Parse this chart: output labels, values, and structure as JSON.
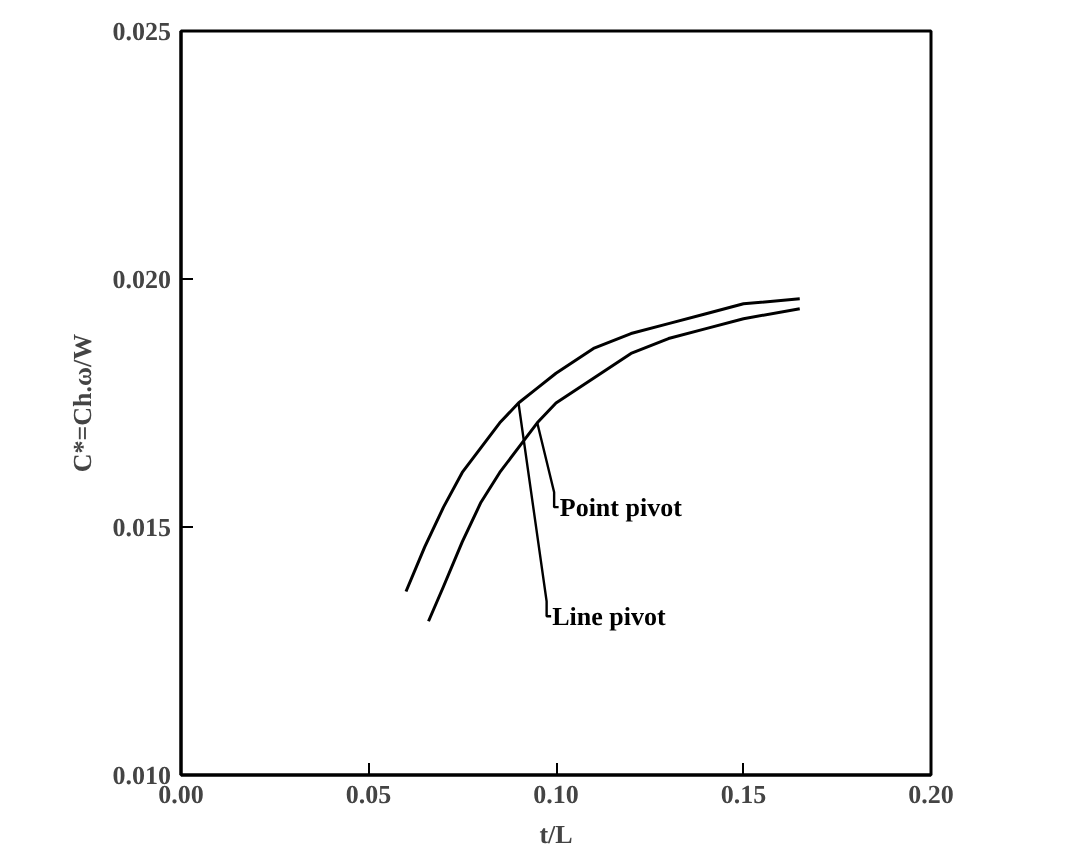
{
  "chart_data": {
    "type": "line",
    "xlabel": "t/L",
    "ylabel": "C*=Ch.ω/W",
    "xlim": [
      0,
      0.2
    ],
    "ylim": [
      0.01,
      0.025
    ],
    "xticks": [
      {
        "value": 0,
        "label": "0.00"
      },
      0.05,
      {
        "value": 0.1,
        "label": "0.10"
      },
      0.15,
      {
        "value": 0.2,
        "label": "0.20"
      }
    ],
    "yticks": [
      {
        "value": 0.01,
        "label": "0.010"
      },
      0.015,
      {
        "value": 0.02,
        "label": "0.020"
      },
      0.025
    ],
    "grid": false,
    "legend": false,
    "marker": "none",
    "line_style": "solid",
    "series": [
      {
        "name": "Line pivot",
        "color": "#000000",
        "x": [
          0.06,
          0.065,
          0.07,
          0.075,
          0.08,
          0.085,
          0.09,
          0.095,
          0.1,
          0.11,
          0.12,
          0.13,
          0.14,
          0.15,
          0.165
        ],
        "values": [
          0.0137,
          0.0146,
          0.0154,
          0.0161,
          0.0166,
          0.0171,
          0.0175,
          0.0178,
          0.0181,
          0.0186,
          0.0189,
          0.0191,
          0.0193,
          0.0195,
          0.0196
        ]
      },
      {
        "name": "Point pivot",
        "color": "#000000",
        "x": [
          0.066,
          0.07,
          0.075,
          0.08,
          0.085,
          0.09,
          0.095,
          0.1,
          0.11,
          0.12,
          0.13,
          0.14,
          0.15,
          0.165
        ],
        "values": [
          0.0131,
          0.0138,
          0.0147,
          0.0155,
          0.0161,
          0.0166,
          0.0171,
          0.0175,
          0.018,
          0.0185,
          0.0188,
          0.019,
          0.0192,
          0.0194
        ]
      }
    ]
  }
}
